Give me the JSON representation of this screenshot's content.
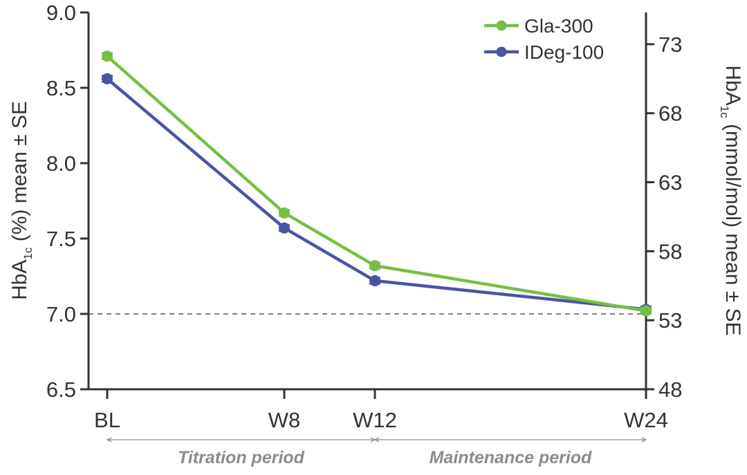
{
  "chart_data": {
    "type": "line",
    "x": [
      "BL",
      "W8",
      "W12",
      "W24"
    ],
    "x_positions_weeks": [
      0,
      8,
      12,
      24
    ],
    "series": [
      {
        "name": "Gla-300",
        "color": "#74c043",
        "values": [
          8.71,
          7.67,
          7.32,
          7.02
        ],
        "se": [
          0.02,
          0.02,
          0.02,
          0.02
        ]
      },
      {
        "name": "IDeg-100",
        "color": "#4a54a5",
        "values": [
          8.56,
          7.57,
          7.22,
          7.03
        ],
        "se": [
          0.02,
          0.02,
          0.02,
          0.02
        ]
      }
    ],
    "ylim": [
      6.5,
      9.0
    ],
    "yticks": [
      "9.0",
      "8.5",
      "8.0",
      "7.5",
      "7.0",
      "6.5"
    ],
    "y2lim": [
      48,
      75.3
    ],
    "y2ticks": [
      "73",
      "68",
      "63",
      "58",
      "53",
      "48"
    ],
    "ylabel": {
      "pre": "HbA",
      "sub": "1c",
      "post": " (%) mean ± SE"
    },
    "y2label": {
      "pre": "HbA",
      "sub": "1c",
      "post": " (mmol/mol)  mean ± SE"
    },
    "reference_line": 7.0,
    "legend_position": "top-right",
    "periods": [
      {
        "label": "Titration period",
        "from": "BL",
        "to": "W12"
      },
      {
        "label": "Maintenance period",
        "from": "W12",
        "to": "W24"
      }
    ],
    "axis_color": "#333333",
    "reference_line_color": "#555555",
    "period_color": "#8c8c8c"
  }
}
